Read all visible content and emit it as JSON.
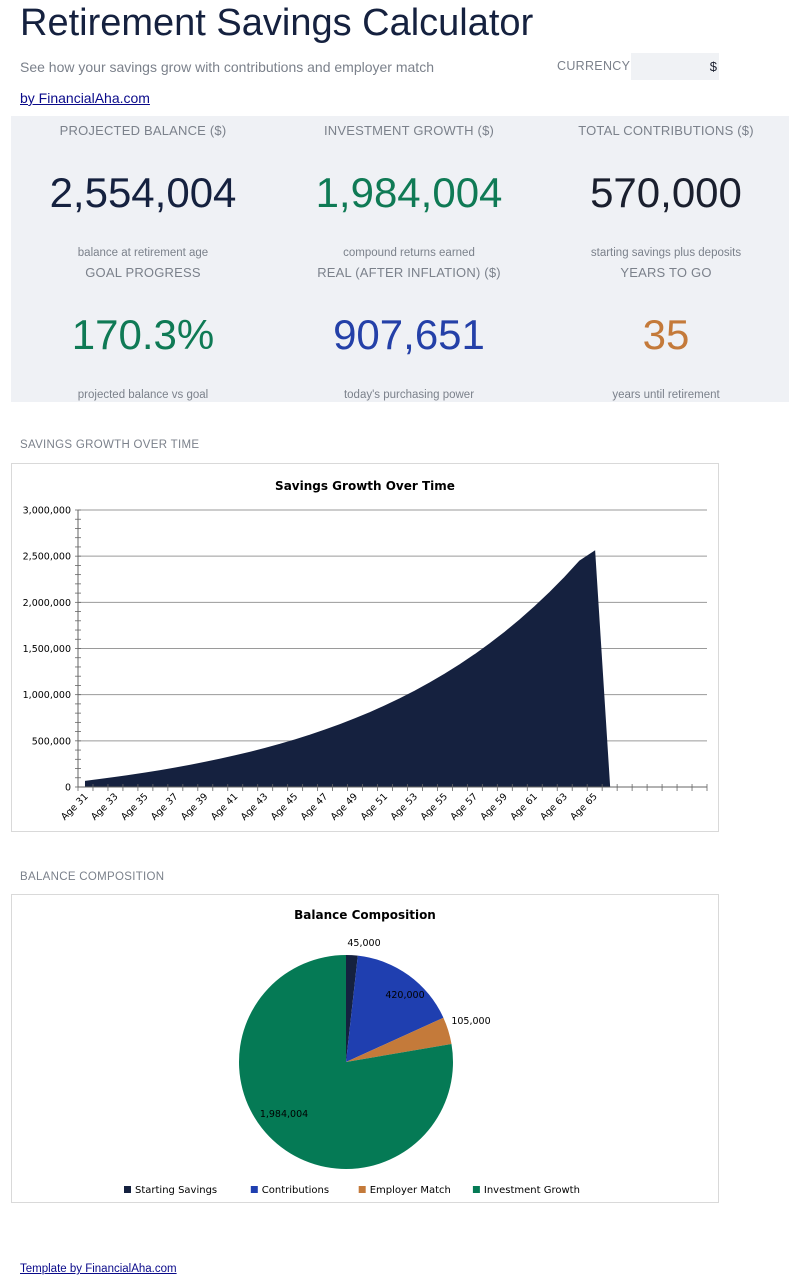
{
  "header": {
    "title": "Retirement Savings Calculator",
    "subtitle": "See how your savings grow with contributions and employer match",
    "byline": "by FinancialAha.com",
    "currency_label": "CURRENCY",
    "currency_value": "$"
  },
  "kpis": [
    {
      "label": "PROJECTED BALANCE ($)",
      "value": "2,554,004",
      "sub": "balance at retirement age",
      "color": "#15213f"
    },
    {
      "label": "INVESTMENT GROWTH ($)",
      "value": "1,984,004",
      "sub": "compound returns earned",
      "color": "#0f7a55"
    },
    {
      "label": "TOTAL CONTRIBUTIONS ($)",
      "value": "570,000",
      "sub": "starting savings plus deposits",
      "color": "#1a1f2e"
    },
    {
      "label": "GOAL PROGRESS",
      "value": "170.3%",
      "sub": "projected balance vs goal",
      "color": "#0f7a55"
    },
    {
      "label": "REAL (AFTER INFLATION) ($)",
      "value": "907,651",
      "sub": "today's purchasing power",
      "color": "#2440a8"
    },
    {
      "label": "YEARS TO GO",
      "value": "35",
      "sub": "years until retirement",
      "color": "#c47a3a"
    }
  ],
  "sections": {
    "growth_label": "SAVINGS GROWTH OVER TIME",
    "composition_label": "BALANCE COMPOSITION"
  },
  "footer": {
    "link": "Template by FinancialAha.com"
  },
  "chart_data": [
    {
      "type": "area",
      "title": "Savings Growth Over Time",
      "xlabel": "",
      "ylabel": "",
      "ylim": [
        0,
        3000000
      ],
      "yticks": [
        0,
        500000,
        1000000,
        1500000,
        2000000,
        2500000,
        3000000
      ],
      "ytick_labels": [
        "0",
        "500,000",
        "1,000,000",
        "1,500,000",
        "2,000,000",
        "2,500,000",
        "3,000,000"
      ],
      "x_tick_labels": [
        "Age 31",
        "Age 33",
        "Age 35",
        "Age 37",
        "Age 39",
        "Age 41",
        "Age 43",
        "Age 45",
        "Age 47",
        "Age 49",
        "Age 51",
        "Age 53",
        "Age 55",
        "Age 57",
        "Age 59",
        "Age 61",
        "Age 63",
        "Age 65"
      ],
      "categories": [
        "Age 31",
        "Age 32",
        "Age 33",
        "Age 34",
        "Age 35",
        "Age 36",
        "Age 37",
        "Age 38",
        "Age 39",
        "Age 40",
        "Age 41",
        "Age 42",
        "Age 43",
        "Age 44",
        "Age 45",
        "Age 46",
        "Age 47",
        "Age 48",
        "Age 49",
        "Age 50",
        "Age 51",
        "Age 52",
        "Age 53",
        "Age 54",
        "Age 55",
        "Age 56",
        "Age 57",
        "Age 58",
        "Age 59",
        "Age 60",
        "Age 61",
        "Age 62",
        "Age 63",
        "Age 64",
        "Age 65",
        "Age 66"
      ],
      "extra_empty_categories": 6,
      "series": [
        {
          "name": "",
          "color": "#15213f",
          "values": [
            62000,
            82000,
            104000,
            127000,
            152000,
            178000,
            206000,
            236000,
            268000,
            302000,
            338000,
            377000,
            419000,
            463000,
            511000,
            562000,
            617000,
            676000,
            739000,
            806000,
            879000,
            956000,
            1039000,
            1128000,
            1223000,
            1325000,
            1434000,
            1551000,
            1676000,
            1810000,
            1953000,
            2107000,
            2271000,
            2448000,
            2554004,
            0
          ]
        }
      ],
      "grid": true
    },
    {
      "type": "pie",
      "title": "Balance Composition",
      "legend_position": "bottom",
      "slices": [
        {
          "label": "Starting Savings",
          "value": 45000,
          "value_label": "45,000",
          "color": "#15213f"
        },
        {
          "label": "Contributions",
          "value": 420000,
          "value_label": "420,000",
          "color": "#1f3fb0"
        },
        {
          "label": "Employer Match",
          "value": 105000,
          "value_label": "105,000",
          "color": "#c47a3a"
        },
        {
          "label": "Investment Growth",
          "value": 1984004,
          "value_label": "1,984,004",
          "color": "#057a55"
        }
      ]
    }
  ]
}
